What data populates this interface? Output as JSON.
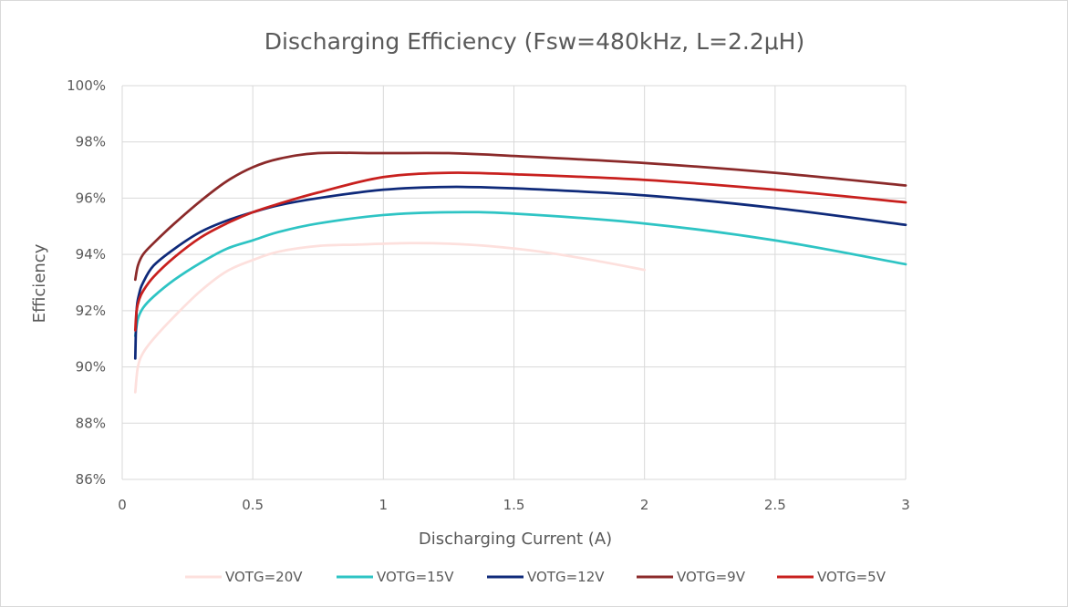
{
  "chart_data": {
    "type": "line",
    "title": "Discharging Efficiency (Fsw=480kHz, L=2.2μH)",
    "xlabel": "Discharging Current (A)",
    "ylabel": "Efficiency",
    "xlim": [
      0,
      3
    ],
    "ylim": [
      86,
      100
    ],
    "x_ticks": [
      0,
      0.5,
      1,
      1.5,
      2,
      2.5,
      3
    ],
    "x_tick_labels": [
      "0",
      "0.5",
      "1",
      "1.5",
      "2",
      "2.5",
      "3"
    ],
    "y_ticks": [
      86,
      88,
      90,
      92,
      94,
      96,
      98,
      100
    ],
    "y_tick_labels": [
      "86%",
      "88%",
      "90%",
      "92%",
      "94%",
      "96%",
      "98%",
      "100%"
    ],
    "grid": "vertical and horizontal major gridlines",
    "legend_position": "bottom",
    "series": [
      {
        "name": "VOTG=20V",
        "color": "#fde0dd",
        "points": [
          [
            0.05,
            89.1
          ],
          [
            0.06,
            90.0
          ],
          [
            0.08,
            90.5
          ],
          [
            0.12,
            91.0
          ],
          [
            0.2,
            91.8
          ],
          [
            0.3,
            92.7
          ],
          [
            0.4,
            93.4
          ],
          [
            0.5,
            93.8
          ],
          [
            0.6,
            94.1
          ],
          [
            0.75,
            94.3
          ],
          [
            0.9,
            94.35
          ],
          [
            1.1,
            94.4
          ],
          [
            1.25,
            94.38
          ],
          [
            1.4,
            94.3
          ],
          [
            1.6,
            94.1
          ],
          [
            1.8,
            93.8
          ],
          [
            2.0,
            93.45
          ]
        ]
      },
      {
        "name": "VOTG=15V",
        "color": "#2ec4c4",
        "points": [
          [
            0.05,
            91.1
          ],
          [
            0.06,
            91.7
          ],
          [
            0.08,
            92.1
          ],
          [
            0.12,
            92.5
          ],
          [
            0.2,
            93.1
          ],
          [
            0.3,
            93.7
          ],
          [
            0.4,
            94.2
          ],
          [
            0.5,
            94.5
          ],
          [
            0.6,
            94.8
          ],
          [
            0.75,
            95.1
          ],
          [
            1.0,
            95.4
          ],
          [
            1.25,
            95.5
          ],
          [
            1.5,
            95.45
          ],
          [
            2.0,
            95.1
          ],
          [
            2.5,
            94.5
          ],
          [
            3.0,
            93.65
          ]
        ]
      },
      {
        "name": "VOTG=12V",
        "color": "#0f2a7a",
        "points": [
          [
            0.05,
            90.3
          ],
          [
            0.055,
            92.0
          ],
          [
            0.065,
            92.6
          ],
          [
            0.08,
            93.0
          ],
          [
            0.12,
            93.6
          ],
          [
            0.2,
            94.2
          ],
          [
            0.3,
            94.8
          ],
          [
            0.4,
            95.2
          ],
          [
            0.5,
            95.5
          ],
          [
            0.6,
            95.75
          ],
          [
            0.75,
            96.0
          ],
          [
            1.0,
            96.3
          ],
          [
            1.25,
            96.4
          ],
          [
            1.5,
            96.35
          ],
          [
            2.0,
            96.1
          ],
          [
            2.5,
            95.65
          ],
          [
            3.0,
            95.05
          ]
        ]
      },
      {
        "name": "VOTG=9V",
        "color": "#8b2a2a",
        "points": [
          [
            0.05,
            93.1
          ],
          [
            0.06,
            93.6
          ],
          [
            0.08,
            94.0
          ],
          [
            0.12,
            94.4
          ],
          [
            0.2,
            95.1
          ],
          [
            0.3,
            95.9
          ],
          [
            0.4,
            96.6
          ],
          [
            0.5,
            97.1
          ],
          [
            0.6,
            97.4
          ],
          [
            0.75,
            97.6
          ],
          [
            1.0,
            97.6
          ],
          [
            1.25,
            97.6
          ],
          [
            1.5,
            97.5
          ],
          [
            2.0,
            97.25
          ],
          [
            2.5,
            96.9
          ],
          [
            3.0,
            96.45
          ]
        ]
      },
      {
        "name": "VOTG=5V",
        "color": "#c8201e",
        "points": [
          [
            0.05,
            91.3
          ],
          [
            0.055,
            92.0
          ],
          [
            0.065,
            92.4
          ],
          [
            0.08,
            92.7
          ],
          [
            0.12,
            93.2
          ],
          [
            0.2,
            93.9
          ],
          [
            0.3,
            94.6
          ],
          [
            0.4,
            95.1
          ],
          [
            0.5,
            95.5
          ],
          [
            0.6,
            95.8
          ],
          [
            0.75,
            96.2
          ],
          [
            1.0,
            96.75
          ],
          [
            1.25,
            96.9
          ],
          [
            1.5,
            96.85
          ],
          [
            2.0,
            96.65
          ],
          [
            2.5,
            96.3
          ],
          [
            3.0,
            95.85
          ]
        ]
      }
    ]
  }
}
